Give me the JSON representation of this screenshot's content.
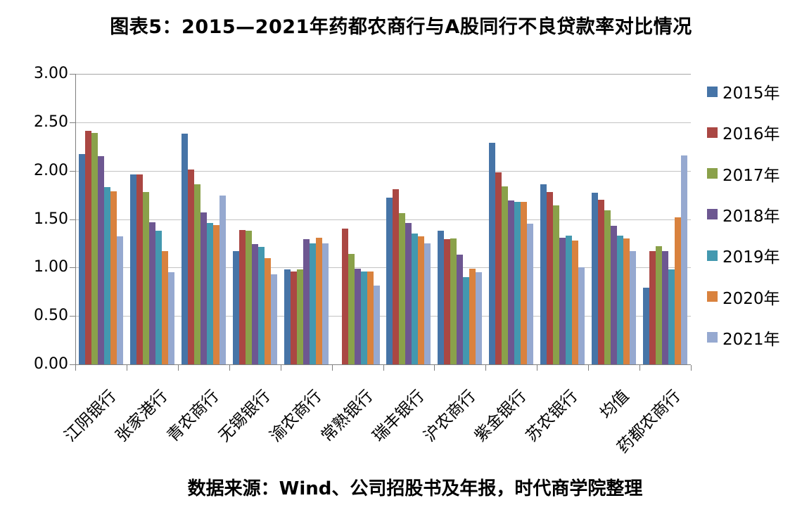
{
  "chart_data": {
    "type": "bar",
    "title": "图表5：2015—2021年药都农商行与A股同行不良贷款率对比情况",
    "source": "数据来源：Wind、公司招股书及年报，时代商学院整理",
    "categories": [
      "江阴银行",
      "张家港行",
      "青农商行",
      "无锡银行",
      "渝农商行",
      "常熟银行",
      "瑞丰银行",
      "沪农商行",
      "紫金银行",
      "苏农银行",
      "均值",
      "药都农商行"
    ],
    "series": [
      {
        "name": "2015年",
        "color": "#4674a7",
        "values": [
          2.17,
          1.96,
          2.38,
          1.17,
          0.98,
          null,
          1.72,
          1.38,
          2.29,
          1.86,
          1.77,
          0.79
        ]
      },
      {
        "name": "2016年",
        "color": "#aa4743",
        "values": [
          2.41,
          1.96,
          2.01,
          1.39,
          0.96,
          1.4,
          1.81,
          1.29,
          1.98,
          1.78,
          1.7,
          1.17
        ]
      },
      {
        "name": "2017年",
        "color": "#8aa14a",
        "values": [
          2.39,
          1.78,
          1.86,
          1.38,
          0.98,
          1.14,
          1.56,
          1.3,
          1.84,
          1.64,
          1.59,
          1.22
        ]
      },
      {
        "name": "2018年",
        "color": "#6d5791",
        "values": [
          2.15,
          1.47,
          1.57,
          1.24,
          1.29,
          0.99,
          1.46,
          1.13,
          1.69,
          1.31,
          1.43,
          1.17
        ]
      },
      {
        "name": "2019年",
        "color": "#4398af",
        "values": [
          1.83,
          1.38,
          1.46,
          1.21,
          1.25,
          0.96,
          1.35,
          0.9,
          1.68,
          1.33,
          1.33,
          0.98
        ]
      },
      {
        "name": "2020年",
        "color": "#d9823e",
        "values": [
          1.79,
          1.17,
          1.44,
          1.1,
          1.31,
          0.96,
          1.32,
          0.99,
          1.68,
          1.28,
          1.3,
          1.52
        ]
      },
      {
        "name": "2021年",
        "color": "#96a9d0",
        "values": [
          1.32,
          0.95,
          1.74,
          0.93,
          1.25,
          0.81,
          1.25,
          0.95,
          1.45,
          1.0,
          1.17,
          2.16
        ]
      }
    ],
    "ylim": [
      0,
      3.0
    ],
    "y_ticks": [
      "0.00",
      "0.50",
      "1.00",
      "1.50",
      "2.00",
      "2.50",
      "3.00"
    ],
    "grid": true,
    "legend_position": "right",
    "xlabel": "",
    "ylabel": ""
  }
}
